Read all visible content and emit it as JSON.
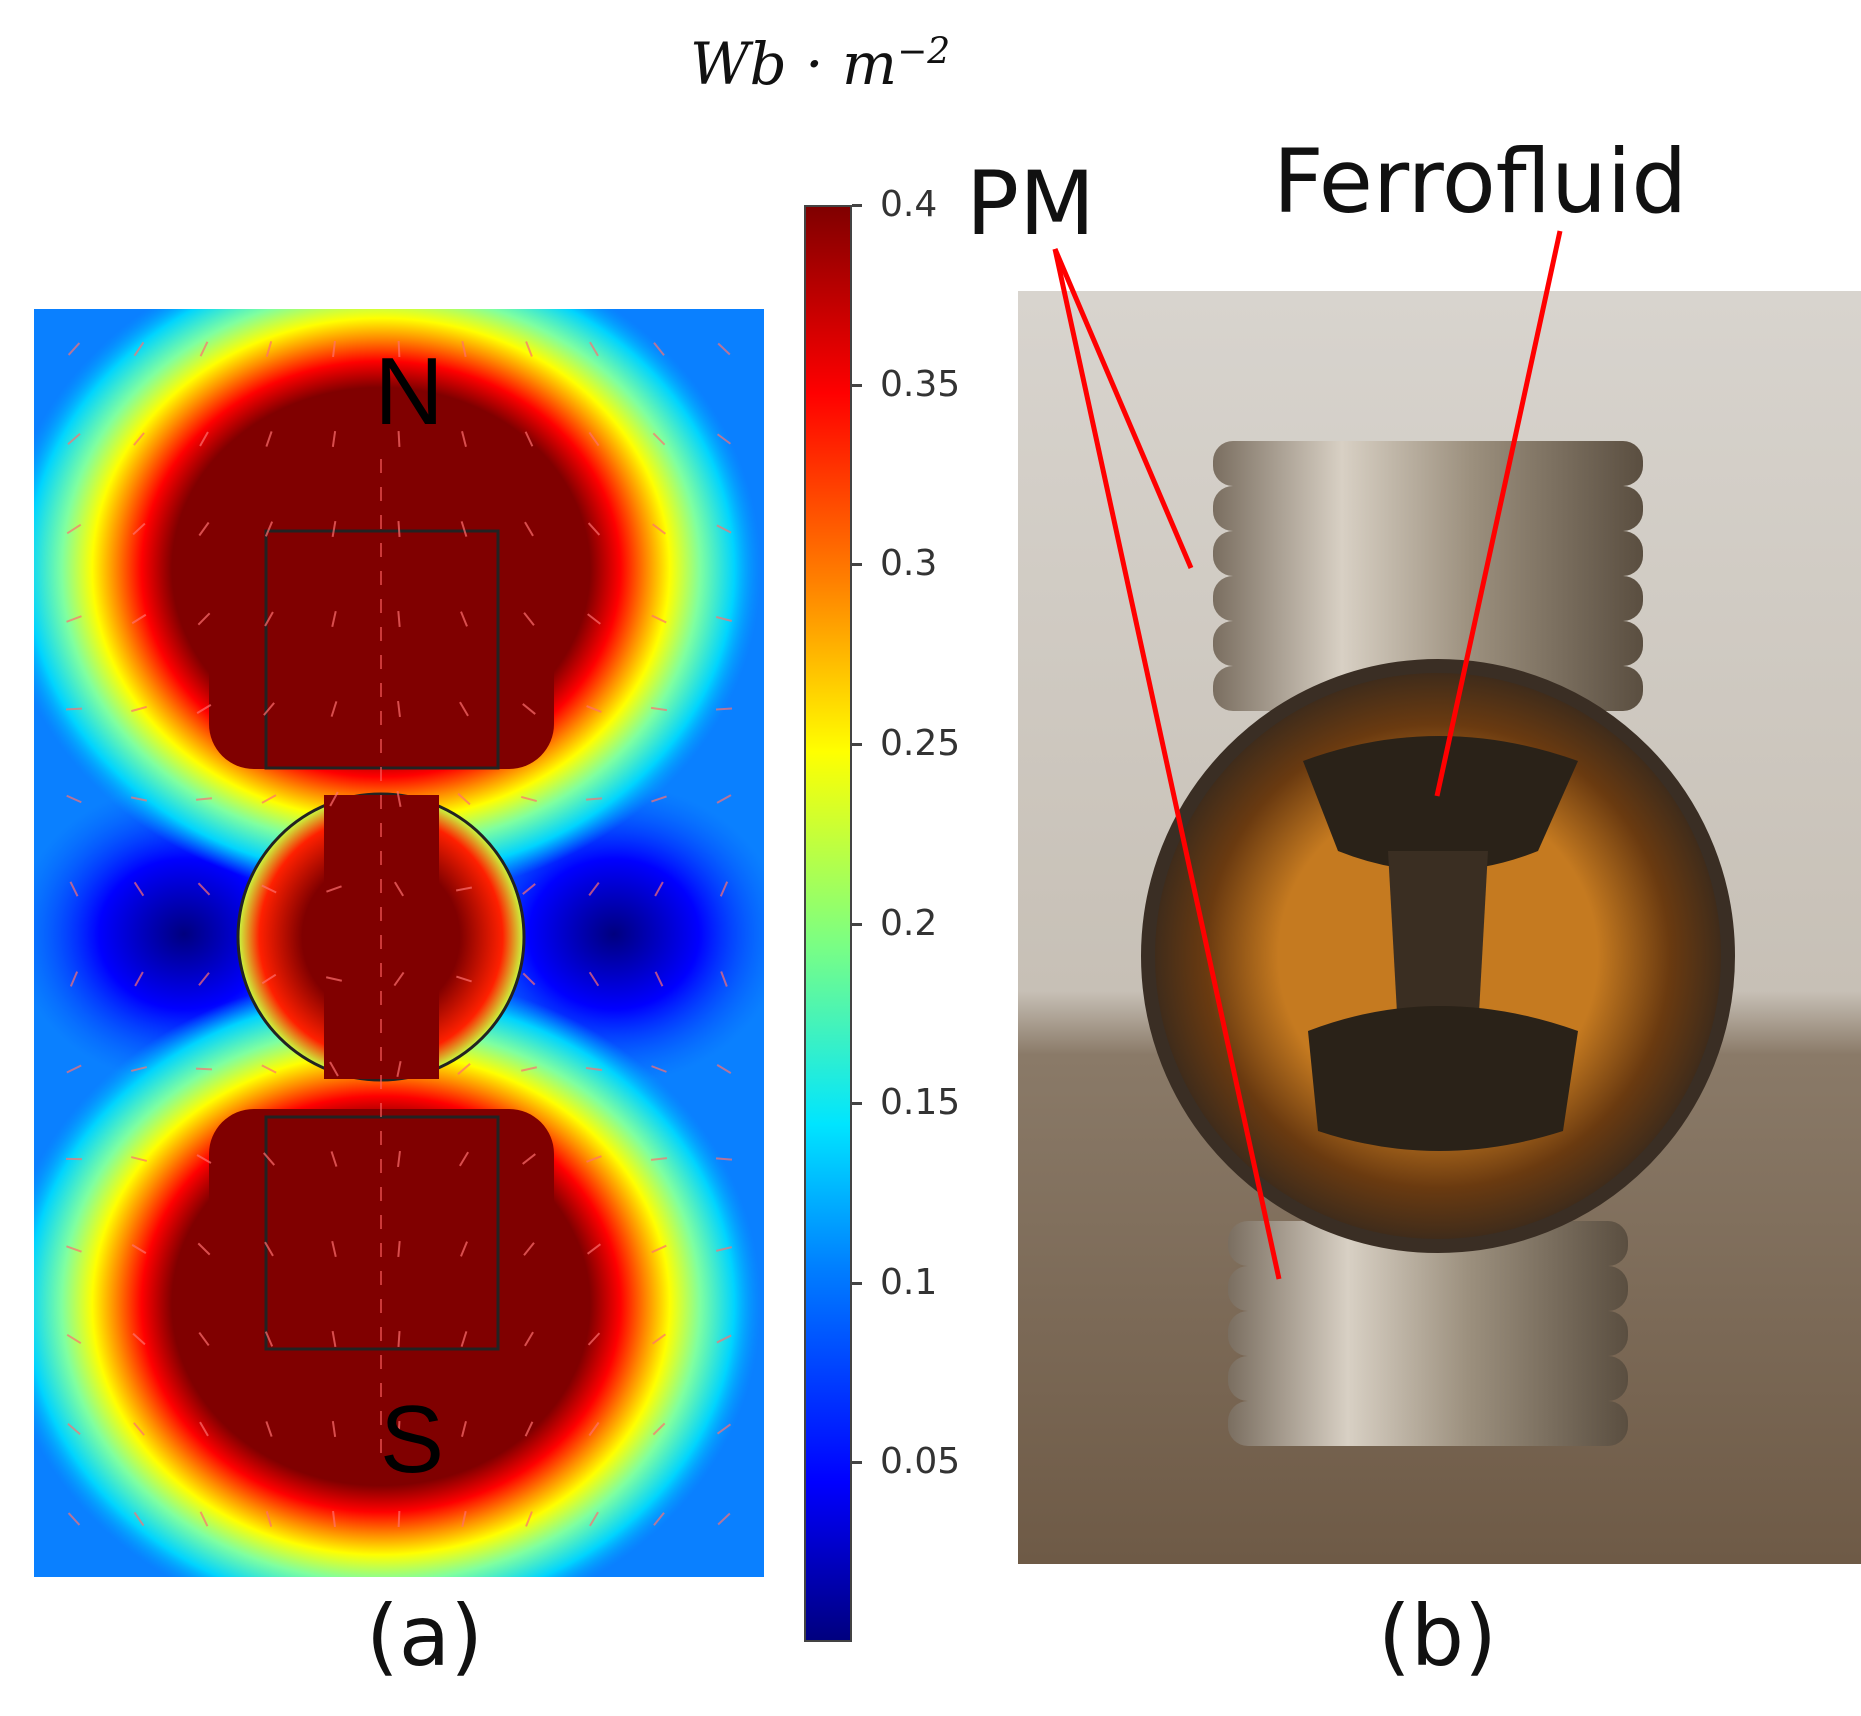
{
  "panels": {
    "a": {
      "label": "(a)",
      "pole_north": "N",
      "pole_south": "S"
    },
    "b": {
      "label": "(b)",
      "annotation_pm": "PM",
      "annotation_ferrofluid": "Ferrofluid"
    }
  },
  "colorbar": {
    "unit_base": "Wb · m",
    "unit_exponent": "−2",
    "ticks": [
      "0.4",
      "0.35",
      "0.3",
      "0.25",
      "0.2",
      "0.15",
      "0.1",
      "0.05"
    ],
    "tick_values": [
      0.4,
      0.35,
      0.3,
      0.25,
      0.2,
      0.15,
      0.1,
      0.05
    ],
    "range": [
      0.0,
      0.4
    ],
    "colormap": "jet"
  },
  "colors": {
    "callout_line": "#ff0000",
    "field_low": "#00007f",
    "field_high": "#800000"
  }
}
